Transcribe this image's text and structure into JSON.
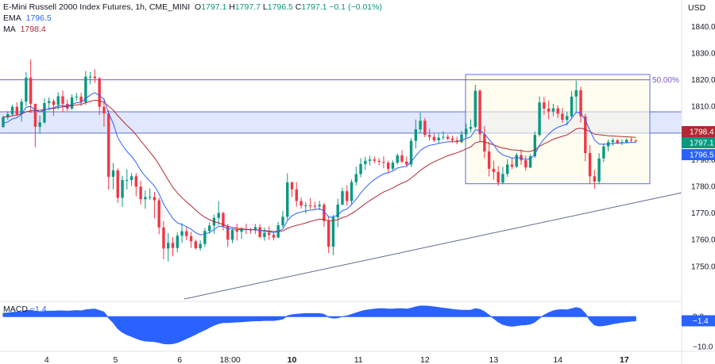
{
  "header": {
    "symbol": "E-Mini Russell 2000 Index Futures, 1h, CME_MINI",
    "o_label": "O",
    "o": "1797.1",
    "h_label": "H",
    "h": "1797.7",
    "l_label": "L",
    "l": "1796.5",
    "c_label": "C",
    "c": "1797.1",
    "change": "−0.1 (−0.01%)",
    "ema_label": "EMA",
    "ema": "1796.5",
    "ma_label": "MA",
    "ma": "1798.4"
  },
  "colors": {
    "up": "#089981",
    "down": "#f23645",
    "ema": "#2962ff",
    "ma": "#b22833",
    "zone_fill": "#dce3fb",
    "zone_line": "#5b6fd6",
    "fib_fill": "#fffbe6",
    "macd": "#2962ff",
    "axis_text": "#131722",
    "level_line": "#9c27b0"
  },
  "chart_data": {
    "type": "candlestick",
    "title": "E-Mini Russell 2000 Index Futures, 1h, CME_MINI",
    "ylabel": "USD",
    "ylim": [
      1744,
      1844
    ],
    "y_ticks": [
      "1840.00",
      "1830.00",
      "1820.00",
      "1810.00",
      "1800.00",
      "1790.00",
      "1780.00",
      "1770.00",
      "1760.00",
      "1750.00"
    ],
    "x_ticks": [
      "4",
      "5",
      "6",
      "18:00",
      "10",
      "11",
      "12",
      "13",
      "14",
      "17"
    ],
    "price_labels": [
      {
        "name": "MA",
        "value": "1798.4",
        "color": "#b22833"
      },
      {
        "name": "Last",
        "value": "1797.1",
        "color": "#089981"
      },
      {
        "name": "EMA",
        "value": "1796.5",
        "color": "#2962ff"
      }
    ],
    "annotations": {
      "fib_level_label": "50.00%",
      "fib_level_price": 1820,
      "fib_box_price_range": [
        1781,
        1822
      ],
      "zone_price_range": [
        1800,
        1808
      ],
      "trendline": [
        {
          "bar": 0,
          "price": 1747
        },
        {
          "bar": 150,
          "price": 1779
        }
      ]
    },
    "candles": [
      [
        1802.3,
        1806.6,
        1802.0,
        1805.9
      ],
      [
        1805.9,
        1808.2,
        1805.0,
        1807.1
      ],
      [
        1807.1,
        1810.6,
        1806.6,
        1809.9
      ],
      [
        1809.9,
        1811.6,
        1806.3,
        1807.1
      ],
      [
        1807.1,
        1812.9,
        1804.3,
        1811.8
      ],
      [
        1811.8,
        1822.9,
        1810.2,
        1820.8
      ],
      [
        1820.8,
        1827.6,
        1807.5,
        1811.0
      ],
      [
        1811.0,
        1811.0,
        1794.7,
        1802.4
      ],
      [
        1802.4,
        1806.6,
        1799.9,
        1804.0
      ],
      [
        1804.0,
        1813.1,
        1803.5,
        1811.3
      ],
      [
        1811.3,
        1813.4,
        1808.5,
        1812.0
      ],
      [
        1812.0,
        1812.8,
        1806.5,
        1810.6
      ],
      [
        1810.6,
        1815.3,
        1808.8,
        1813.8
      ],
      [
        1813.8,
        1816.0,
        1807.9,
        1811.0
      ],
      [
        1811.0,
        1812.6,
        1808.3,
        1809.2
      ],
      [
        1809.2,
        1814.5,
        1808.8,
        1813.4
      ],
      [
        1813.4,
        1815.1,
        1812.2,
        1813.7
      ],
      [
        1813.7,
        1815.1,
        1810.2,
        1811.6
      ],
      [
        1811.6,
        1823.3,
        1810.6,
        1821.2
      ],
      [
        1821.2,
        1822.9,
        1818.3,
        1821.2
      ],
      [
        1821.2,
        1823.9,
        1818.8,
        1820.6
      ],
      [
        1820.6,
        1821.0,
        1806.8,
        1809.9
      ],
      [
        1809.9,
        1813.0,
        1802.4,
        1807.4
      ],
      [
        1807.4,
        1808.7,
        1778.8,
        1783.6
      ],
      [
        1783.6,
        1788.8,
        1778.9,
        1786.0
      ],
      [
        1786.0,
        1786.8,
        1773.8,
        1775.7
      ],
      [
        1775.7,
        1784.0,
        1772.3,
        1782.4
      ],
      [
        1782.4,
        1786.4,
        1778.8,
        1782.4
      ],
      [
        1782.4,
        1785.1,
        1780.1,
        1783.8
      ],
      [
        1783.8,
        1785.0,
        1776.3,
        1779.9
      ],
      [
        1779.9,
        1782.1,
        1773.2,
        1775.2
      ],
      [
        1775.2,
        1778.5,
        1771.6,
        1776.0
      ],
      [
        1776.0,
        1779.3,
        1774.9,
        1776.0
      ],
      [
        1776.0,
        1777.9,
        1768.0,
        1774.8
      ],
      [
        1774.8,
        1775.8,
        1762.0,
        1764.6
      ],
      [
        1764.6,
        1767.0,
        1752.6,
        1756.7
      ],
      [
        1756.7,
        1762.5,
        1751.8,
        1758.8
      ],
      [
        1758.8,
        1761.0,
        1753.8,
        1756.9
      ],
      [
        1756.9,
        1762.8,
        1755.3,
        1761.5
      ],
      [
        1761.5,
        1766.2,
        1758.8,
        1763.2
      ],
      [
        1763.2,
        1764.8,
        1759.8,
        1761.3
      ],
      [
        1761.3,
        1762.9,
        1756.9,
        1759.4
      ],
      [
        1759.4,
        1760.0,
        1756.3,
        1756.8
      ],
      [
        1756.8,
        1759.7,
        1755.9,
        1758.4
      ],
      [
        1758.4,
        1764.4,
        1757.2,
        1763.3
      ],
      [
        1763.3,
        1766.5,
        1762.3,
        1765.3
      ],
      [
        1765.3,
        1769.4,
        1762.2,
        1768.2
      ],
      [
        1768.2,
        1774.5,
        1765.5,
        1770.0
      ],
      [
        1770.0,
        1770.5,
        1763.5,
        1765.0
      ],
      [
        1765.0,
        1765.9,
        1757.3,
        1760.0
      ],
      [
        1760.0,
        1764.2,
        1758.7,
        1763.6
      ],
      [
        1763.6,
        1766.0,
        1759.7,
        1763.0
      ],
      [
        1763.0,
        1764.8,
        1760.3,
        1763.9
      ],
      [
        1763.9,
        1766.0,
        1762.1,
        1763.7
      ],
      [
        1763.7,
        1764.5,
        1762.2,
        1763.5
      ],
      [
        1763.5,
        1765.9,
        1762.1,
        1764.7
      ],
      [
        1764.7,
        1765.9,
        1760.5,
        1761.0
      ],
      [
        1761.0,
        1764.5,
        1759.6,
        1762.6
      ],
      [
        1762.6,
        1765.0,
        1759.9,
        1761.8
      ],
      [
        1761.8,
        1762.6,
        1759.7,
        1760.8
      ],
      [
        1760.8,
        1766.6,
        1760.6,
        1765.4
      ],
      [
        1765.4,
        1770.8,
        1764.6,
        1768.6
      ],
      [
        1768.6,
        1784.9,
        1767.4,
        1781.5
      ],
      [
        1781.5,
        1781.8,
        1776.0,
        1778.9
      ],
      [
        1778.9,
        1781.6,
        1772.4,
        1774.5
      ],
      [
        1774.5,
        1775.8,
        1771.7,
        1772.8
      ],
      [
        1772.8,
        1774.2,
        1769.9,
        1772.9
      ],
      [
        1772.9,
        1775.7,
        1771.5,
        1772.7
      ],
      [
        1772.7,
        1774.2,
        1771.4,
        1772.5
      ],
      [
        1772.5,
        1774.6,
        1771.1,
        1773.1
      ],
      [
        1773.1,
        1773.8,
        1764.8,
        1767.0
      ],
      [
        1767.0,
        1768.6,
        1755.0,
        1757.4
      ],
      [
        1757.4,
        1769.4,
        1754.2,
        1768.4
      ],
      [
        1768.4,
        1775.4,
        1764.7,
        1773.2
      ],
      [
        1773.2,
        1779.5,
        1772.9,
        1778.2
      ],
      [
        1778.2,
        1780.4,
        1772.7,
        1774.5
      ],
      [
        1774.5,
        1782.6,
        1773.2,
        1781.6
      ],
      [
        1781.6,
        1787.4,
        1780.3,
        1784.6
      ],
      [
        1784.6,
        1790.6,
        1783.4,
        1788.4
      ],
      [
        1788.4,
        1791.1,
        1786.2,
        1789.6
      ],
      [
        1789.6,
        1791.5,
        1787.9,
        1790.1
      ],
      [
        1790.1,
        1791.2,
        1788.7,
        1789.6
      ],
      [
        1789.6,
        1790.6,
        1787.9,
        1789.2
      ],
      [
        1789.2,
        1791.3,
        1786.8,
        1788.9
      ],
      [
        1788.9,
        1789.7,
        1784.9,
        1786.6
      ],
      [
        1786.6,
        1789.7,
        1786.1,
        1788.9
      ],
      [
        1788.9,
        1792.4,
        1788.2,
        1791.6
      ],
      [
        1791.6,
        1793.6,
        1788.7,
        1789.3
      ],
      [
        1789.3,
        1791.2,
        1787.4,
        1788.2
      ],
      [
        1788.2,
        1798.1,
        1787.3,
        1797.1
      ],
      [
        1797.1,
        1805.1,
        1794.2,
        1801.4
      ],
      [
        1801.4,
        1807.7,
        1800.0,
        1804.6
      ],
      [
        1804.6,
        1805.7,
        1798.4,
        1799.3
      ],
      [
        1799.3,
        1801.6,
        1797.2,
        1798.6
      ],
      [
        1798.6,
        1799.8,
        1796.6,
        1797.3
      ],
      [
        1797.3,
        1799.9,
        1796.2,
        1798.3
      ],
      [
        1798.3,
        1800.7,
        1797.5,
        1798.6
      ],
      [
        1798.6,
        1799.5,
        1797.3,
        1797.9
      ],
      [
        1797.9,
        1799.1,
        1796.4,
        1797.3
      ],
      [
        1797.3,
        1798.7,
        1795.8,
        1796.6
      ],
      [
        1796.6,
        1800.8,
        1796.2,
        1799.5
      ],
      [
        1799.5,
        1803.6,
        1798.3,
        1801.6
      ],
      [
        1801.6,
        1805.1,
        1800.4,
        1802.3
      ],
      [
        1802.3,
        1818.1,
        1801.8,
        1815.9
      ],
      [
        1815.9,
        1816.4,
        1796.7,
        1799.6
      ],
      [
        1799.6,
        1802.6,
        1790.6,
        1793.1
      ],
      [
        1793.1,
        1796.8,
        1783.7,
        1786.6
      ],
      [
        1786.6,
        1789.7,
        1782.5,
        1785.4
      ],
      [
        1785.4,
        1787.6,
        1780.2,
        1781.4
      ],
      [
        1781.4,
        1787.3,
        1780.8,
        1784.7
      ],
      [
        1784.7,
        1790.2,
        1783.6,
        1788.2
      ],
      [
        1788.2,
        1790.8,
        1786.5,
        1787.4
      ],
      [
        1787.4,
        1792.6,
        1786.9,
        1791.8
      ],
      [
        1791.8,
        1793.9,
        1788.1,
        1789.8
      ],
      [
        1789.8,
        1791.6,
        1785.9,
        1787.1
      ],
      [
        1787.1,
        1792.1,
        1786.8,
        1791.3
      ],
      [
        1791.3,
        1800.6,
        1790.7,
        1799.3
      ],
      [
        1799.3,
        1813.8,
        1798.7,
        1811.5
      ],
      [
        1811.5,
        1813.7,
        1806.9,
        1809.2
      ],
      [
        1809.2,
        1812.2,
        1805.2,
        1808.1
      ],
      [
        1808.1,
        1811.0,
        1806.4,
        1809.3
      ],
      [
        1809.3,
        1810.4,
        1805.7,
        1807.3
      ],
      [
        1807.3,
        1809.4,
        1803.9,
        1805.0
      ],
      [
        1805.0,
        1808.0,
        1802.9,
        1806.4
      ],
      [
        1806.4,
        1815.8,
        1805.8,
        1813.7
      ],
      [
        1813.7,
        1819.7,
        1807.9,
        1816.1
      ],
      [
        1816.1,
        1817.4,
        1803.9,
        1806.3
      ],
      [
        1806.3,
        1807.3,
        1789.4,
        1792.5
      ],
      [
        1792.5,
        1795.5,
        1780.8,
        1783.8
      ],
      [
        1783.8,
        1786.2,
        1779.1,
        1781.8
      ],
      [
        1781.8,
        1792.5,
        1780.8,
        1790.5
      ],
      [
        1790.5,
        1796.2,
        1789.1,
        1795.0
      ],
      [
        1795.0,
        1797.6,
        1793.2,
        1796.6
      ],
      [
        1796.6,
        1798.1,
        1795.2,
        1797.3
      ],
      [
        1797.3,
        1797.8,
        1795.9,
        1796.4
      ],
      [
        1796.4,
        1797.7,
        1795.5,
        1796.6
      ],
      [
        1796.6,
        1798.0,
        1796.1,
        1797.5
      ],
      [
        1797.5,
        1798.3,
        1796.5,
        1797.2
      ],
      [
        1797.2,
        1797.7,
        1796.5,
        1797.1
      ]
    ],
    "ema": [
      1803.6,
      1804.2,
      1805.3,
      1805.8,
      1807.0,
      1809.7,
      1810.0,
      1808.6,
      1808.0,
      1808.6,
      1809.2,
      1809.5,
      1810.2,
      1810.4,
      1810.2,
      1810.8,
      1811.4,
      1811.5,
      1813.0,
      1814.3,
      1815.2,
      1814.1,
      1812.8,
      1807.5,
      1803.6,
      1798.3,
      1795.5,
      1793.1,
      1791.3,
      1789.0,
      1786.0,
      1783.8,
      1782.0,
      1780.2,
      1777.2,
      1773.4,
      1770.6,
      1768.0,
      1766.3,
      1765.7,
      1764.9,
      1763.9,
      1762.6,
      1761.8,
      1762.1,
      1762.7,
      1763.8,
      1765.0,
      1765.0,
      1764.1,
      1764.0,
      1763.8,
      1763.8,
      1763.8,
      1763.7,
      1763.9,
      1763.4,
      1763.2,
      1763.0,
      1762.6,
      1763.1,
      1764.0,
      1767.1,
      1769.0,
      1769.9,
      1770.4,
      1770.8,
      1771.1,
      1771.3,
      1771.6,
      1770.8,
      1768.5,
      1768.5,
      1769.3,
      1770.9,
      1771.5,
      1773.2,
      1775.2,
      1777.5,
      1779.5,
      1781.2,
      1782.6,
      1783.7,
      1784.7,
      1785.1,
      1785.8,
      1786.9,
      1787.3,
      1787.5,
      1789.3,
      1791.4,
      1793.5,
      1794.6,
      1795.4,
      1795.7,
      1796.1,
      1796.5,
      1796.7,
      1796.8,
      1796.8,
      1797.3,
      1798.0,
      1798.6,
      1801.2,
      1801.0,
      1799.8,
      1797.6,
      1795.7,
      1793.1,
      1791.8,
      1791.2,
      1790.6,
      1790.8,
      1790.6,
      1790.1,
      1790.3,
      1792.0,
      1795.5,
      1797.8,
      1799.6,
      1801.2,
      1802.2,
      1802.8,
      1803.4,
      1805.5,
      1807.8,
      1807.5,
      1804.9,
      1801.0,
      1797.4,
      1795.9,
      1795.8,
      1795.9,
      1796.1,
      1796.2,
      1796.3,
      1796.4,
      1796.5,
      1796.5
    ],
    "ma": [
      1806.0,
      1806.2,
      1806.5,
      1806.8,
      1807.2,
      1808.0,
      1808.4,
      1808.5,
      1808.6,
      1808.8,
      1809.1,
      1809.3,
      1809.6,
      1809.9,
      1810.0,
      1810.3,
      1810.6,
      1810.8,
      1811.4,
      1811.9,
      1812.4,
      1812.1,
      1811.6,
      1810.1,
      1808.6,
      1806.5,
      1804.7,
      1802.9,
      1801.3,
      1799.4,
      1797.1,
      1795.0,
      1792.9,
      1790.8,
      1788.2,
      1785.3,
      1782.4,
      1779.7,
      1777.5,
      1775.8,
      1774.2,
      1772.7,
      1771.1,
      1769.6,
      1768.4,
      1767.5,
      1766.8,
      1766.3,
      1765.7,
      1765.0,
      1764.6,
      1764.3,
      1764.1,
      1763.9,
      1763.8,
      1763.7,
      1763.5,
      1763.4,
      1763.3,
      1763.1,
      1763.1,
      1763.3,
      1764.2,
      1764.9,
      1765.4,
      1765.8,
      1766.3,
      1766.8,
      1767.3,
      1767.7,
      1767.6,
      1767.1,
      1767.1,
      1767.5,
      1768.3,
      1768.8,
      1769.8,
      1770.9,
      1772.2,
      1773.5,
      1774.7,
      1775.8,
      1776.9,
      1777.9,
      1778.6,
      1779.4,
      1780.4,
      1781.2,
      1781.9,
      1783.1,
      1784.5,
      1786.0,
      1787.2,
      1788.3,
      1789.2,
      1790.0,
      1790.8,
      1791.5,
      1792.1,
      1792.6,
      1793.3,
      1794.1,
      1794.8,
      1796.4,
      1796.8,
      1796.7,
      1796.1,
      1795.6,
      1794.9,
      1794.4,
      1794.1,
      1793.7,
      1793.6,
      1793.4,
      1793.1,
      1793.1,
      1793.7,
      1795.0,
      1796.0,
      1796.8,
      1797.7,
      1798.3,
      1798.8,
      1799.3,
      1800.4,
      1801.6,
      1801.8,
      1801.4,
      1800.6,
      1799.6,
      1799.4,
      1799.2,
      1799.0,
      1798.9,
      1798.8,
      1798.7,
      1798.6,
      1798.5,
      1798.4
    ],
    "macd": {
      "label": "MACD",
      "value": "−1.4",
      "ylim": [
        -11,
        4
      ],
      "y_ticks": [
        "0.0",
        "−10.0"
      ],
      "last_label": "−1.4",
      "values": [
        1.1,
        1.2,
        1.4,
        1.5,
        1.6,
        2.0,
        2.1,
        1.8,
        1.6,
        1.7,
        1.8,
        1.8,
        1.9,
        1.9,
        1.8,
        1.9,
        2.0,
        1.9,
        2.2,
        2.4,
        2.5,
        2.0,
        1.5,
        -0.5,
        -2.0,
        -4.0,
        -5.2,
        -6.0,
        -6.6,
        -7.2,
        -7.8,
        -8.1,
        -8.2,
        -8.3,
        -8.6,
        -9.0,
        -9.1,
        -9.0,
        -8.6,
        -8.0,
        -7.3,
        -6.6,
        -5.9,
        -5.1,
        -4.4,
        -3.6,
        -2.9,
        -2.3,
        -2.0,
        -2.0,
        -1.9,
        -1.8,
        -1.7,
        -1.6,
        -1.5,
        -1.4,
        -1.4,
        -1.3,
        -1.3,
        -1.3,
        -1.1,
        -0.8,
        0.2,
        0.6,
        0.8,
        0.9,
        1.0,
        1.0,
        1.0,
        1.0,
        0.7,
        -0.2,
        -0.5,
        -0.4,
        0.0,
        0.2,
        0.7,
        1.2,
        1.7,
        2.1,
        2.3,
        2.5,
        2.6,
        2.6,
        2.5,
        2.5,
        2.6,
        2.6,
        2.5,
        2.8,
        3.2,
        3.5,
        3.5,
        3.4,
        3.2,
        3.0,
        2.8,
        2.6,
        2.4,
        2.2,
        2.1,
        2.1,
        2.1,
        2.6,
        2.4,
        1.6,
        0.5,
        -0.6,
        -1.8,
        -2.6,
        -3.0,
        -3.2,
        -3.0,
        -2.8,
        -2.7,
        -2.5,
        -1.8,
        -0.5,
        0.5,
        1.3,
        1.9,
        2.2,
        2.3,
        2.2,
        2.6,
        3.0,
        2.6,
        1.0,
        -1.2,
        -2.8,
        -3.1,
        -3.0,
        -2.7,
        -2.4,
        -2.1,
        -1.9,
        -1.7,
        -1.5,
        -1.4
      ]
    }
  }
}
